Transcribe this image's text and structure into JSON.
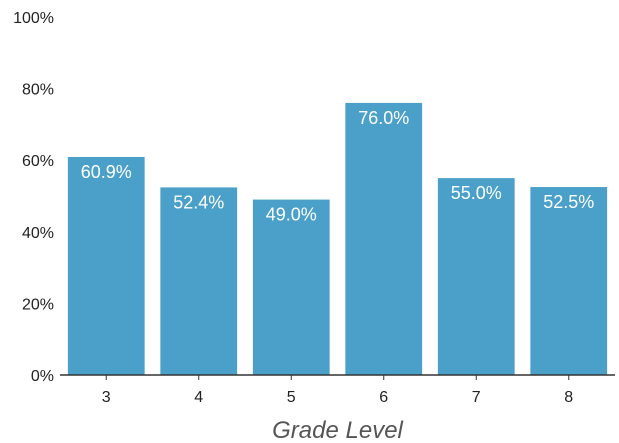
{
  "chart_data": {
    "type": "bar",
    "xlabel": "Grade Level",
    "ylabel": "",
    "categories": [
      "3",
      "4",
      "5",
      "6",
      "7",
      "8"
    ],
    "values": [
      60.9,
      52.4,
      49.0,
      76.0,
      55.0,
      52.5
    ],
    "value_labels": [
      "60.9%",
      "52.4%",
      "49.0%",
      "76.0%",
      "55.0%",
      "52.5%"
    ],
    "ylim": [
      0,
      100
    ],
    "yticks": [
      0,
      20,
      40,
      60,
      80,
      100
    ],
    "ytick_labels": [
      "0%",
      "20%",
      "40%",
      "60%",
      "80%",
      "100%"
    ],
    "grid": false,
    "bar_color": "#4aa0c8",
    "axis_color": "#333333"
  }
}
